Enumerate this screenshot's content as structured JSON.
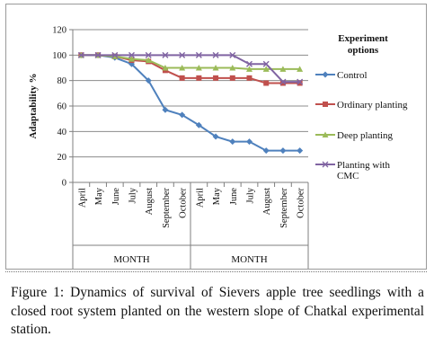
{
  "chart_data": {
    "type": "line",
    "ylabel": "Adaptability %",
    "xlabel": "MONTH",
    "ylim": [
      0,
      120
    ],
    "yticks": [
      0,
      20,
      40,
      60,
      80,
      100,
      120
    ],
    "grid": "horizontal",
    "legend_title": "Experiment options",
    "legend_title_lines": [
      "Experiment",
      "options"
    ],
    "legend_position": "right",
    "categories": [
      "April",
      "May",
      "June",
      "July",
      "August",
      "September",
      "October",
      "April",
      "May",
      "June",
      "July",
      "August",
      "September",
      "October"
    ],
    "groups": [
      {
        "label": "MONTH",
        "start": 0,
        "end": 6
      },
      {
        "label": "MONTH",
        "start": 7,
        "end": 13
      }
    ],
    "series": [
      {
        "name": "Control",
        "name_lines": [
          "Control"
        ],
        "color": "#4f81bd",
        "marker": "diamond",
        "values": [
          100,
          100,
          98,
          93,
          80,
          57,
          53,
          45,
          36,
          32,
          32,
          25,
          25,
          25
        ]
      },
      {
        "name": "Ordinary planting",
        "name_lines": [
          "Ordinary planting"
        ],
        "color": "#c0504d",
        "marker": "square",
        "values": [
          100,
          100,
          99,
          96,
          95,
          88,
          82,
          82,
          82,
          82,
          82,
          78,
          78,
          78
        ]
      },
      {
        "name": "Deep planting",
        "name_lines": [
          "Deep planting"
        ],
        "color": "#9bbb59",
        "marker": "triangle",
        "values": [
          100,
          100,
          99,
          97,
          96,
          90,
          90,
          90,
          90,
          90,
          89,
          89,
          89,
          89
        ]
      },
      {
        "name": "Planting with CMC",
        "name_lines": [
          "Planting with",
          "CMC"
        ],
        "color": "#8064a2",
        "marker": "cross",
        "values": [
          100,
          100,
          100,
          100,
          100,
          100,
          100,
          100,
          100,
          100,
          93,
          93,
          79,
          79
        ]
      }
    ]
  },
  "caption": {
    "label": "Figure 1:",
    "text": "Dynamics of survival of Sievers apple tree seedlings with a closed root system planted on the western slope of Chatkal experimental station."
  }
}
